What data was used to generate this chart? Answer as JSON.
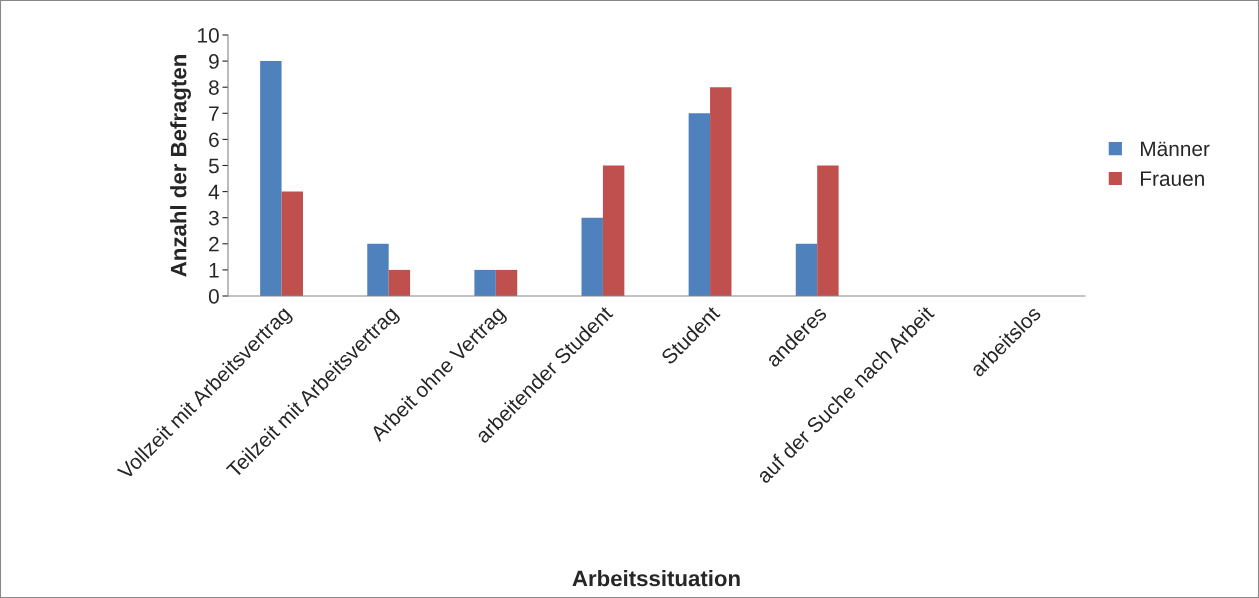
{
  "chart_data": {
    "type": "bar",
    "xlabel": "Arbeitssituation",
    "ylabel": "Anzahl der Befragten",
    "categories": [
      "Vollzeit mit Arbeitsvertrag",
      "Teilzeit mit Arbeitsvertrag",
      "Arbeit ohne Vertrag",
      "arbeitender Student",
      "Student",
      "anderes",
      "auf der Suche nach Arbeit",
      "arbeitslos"
    ],
    "series": [
      {
        "name": "Männer",
        "color": "#4f81bd",
        "values": [
          9,
          2,
          1,
          3,
          7,
          2,
          0,
          0
        ]
      },
      {
        "name": "Frauen",
        "color": "#c0504d",
        "values": [
          4,
          1,
          1,
          5,
          8,
          5,
          0,
          0
        ]
      }
    ],
    "ylim": [
      0,
      10
    ],
    "yticks": [
      0,
      1,
      2,
      3,
      4,
      5,
      6,
      7,
      8,
      9,
      10
    ],
    "grid": false,
    "legend": "right"
  }
}
